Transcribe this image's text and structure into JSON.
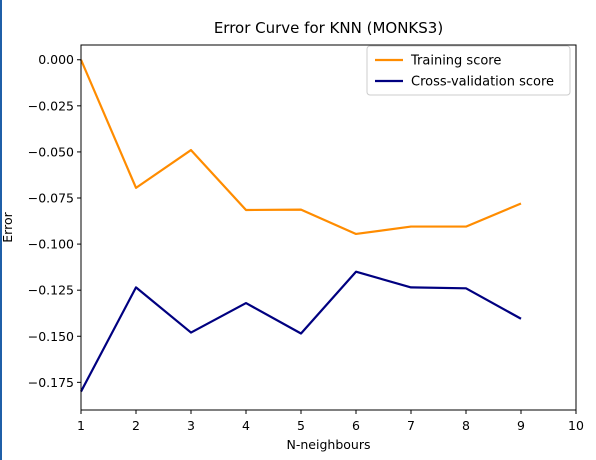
{
  "chart_data": {
    "type": "line",
    "title": "Error Curve for KNN (MONKS3)",
    "xlabel": "N-neighbours",
    "ylabel": "Error",
    "xlim": [
      1,
      10
    ],
    "ylim": [
      -0.19,
      0.008
    ],
    "x_ticks": [
      1,
      2,
      3,
      4,
      5,
      6,
      7,
      8,
      9,
      10
    ],
    "y_ticks": [
      0.0,
      -0.025,
      -0.05,
      -0.075,
      -0.1,
      -0.125,
      -0.15,
      -0.175
    ],
    "y_tick_labels": [
      "0.000",
      "−0.025",
      "−0.050",
      "−0.075",
      "−0.100",
      "−0.125",
      "−0.150",
      "−0.175"
    ],
    "grid": false,
    "legend_position": "top-right",
    "x": [
      1,
      2,
      3,
      4,
      5,
      6,
      7,
      8,
      9
    ],
    "series": [
      {
        "name": "Training score",
        "color": "#ff8c00",
        "values": [
          0.0,
          -0.0695,
          -0.049,
          -0.0815,
          -0.0813,
          -0.0945,
          -0.0905,
          -0.0905,
          -0.078
        ]
      },
      {
        "name": "Cross-validation score",
        "color": "#000080",
        "values": [
          -0.18,
          -0.1235,
          -0.148,
          -0.132,
          -0.1485,
          -0.115,
          -0.1235,
          -0.124,
          -0.1405
        ]
      }
    ]
  }
}
